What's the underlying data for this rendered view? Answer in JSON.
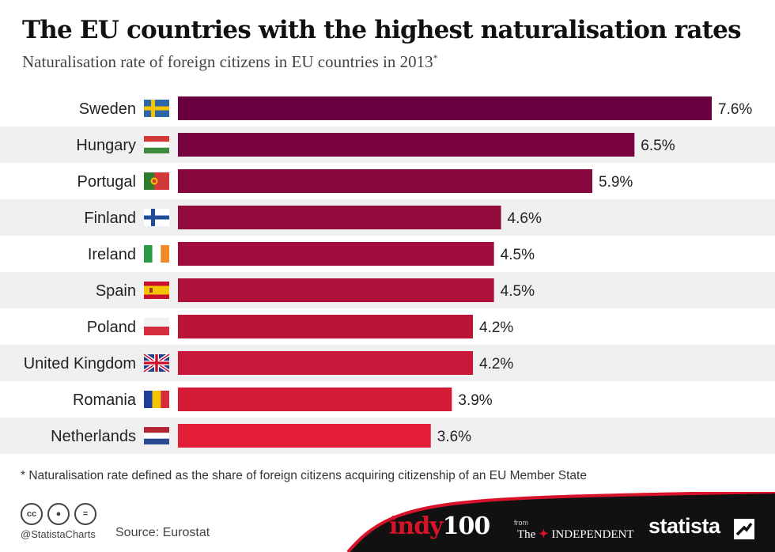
{
  "title": "The EU countries with the highest naturalisation rates",
  "subtitle": "Naturalisation rate of foreign citizens in EU countries in 2013",
  "subtitle_mark": "*",
  "footnote": "* Naturalisation rate defined as the share of foreign citizens acquiring citizenship of an EU Member State",
  "footer": {
    "handle": "@StatistaCharts",
    "source": "Source: Eurostat",
    "cc_icons": [
      "cc-icon",
      "by-icon",
      "nd-icon"
    ],
    "indy_a": "indy",
    "indy_b": "100",
    "from": "from",
    "independent_a": "The",
    "independent_b": "INDEPENDENT",
    "statista": "statista",
    "footer_bg": "#111111"
  },
  "colors": {
    "bar_start": "#6b0040",
    "bar_end": "#e31e36",
    "stripe": "#f0f0f0"
  },
  "chart_data": {
    "type": "bar",
    "orientation": "horizontal",
    "categories": [
      "Sweden",
      "Hungary",
      "Portugal",
      "Finland",
      "Ireland",
      "Spain",
      "Poland",
      "United Kingdom",
      "Romania",
      "Netherlands"
    ],
    "values": [
      7.6,
      6.5,
      5.9,
      4.6,
      4.5,
      4.5,
      4.2,
      4.2,
      3.9,
      3.6
    ],
    "value_labels": [
      "7.6%",
      "6.5%",
      "5.9%",
      "4.6%",
      "4.5%",
      "4.5%",
      "4.2%",
      "4.2%",
      "3.9%",
      "3.6%"
    ],
    "unit": "%",
    "flags": [
      "sweden-flag-icon",
      "hungary-flag-icon",
      "portugal-flag-icon",
      "finland-flag-icon",
      "ireland-flag-icon",
      "spain-flag-icon",
      "poland-flag-icon",
      "uk-flag-icon",
      "romania-flag-icon",
      "netherlands-flag-icon"
    ],
    "xlim": [
      0,
      7.6
    ],
    "grid": false,
    "legend": "none"
  }
}
